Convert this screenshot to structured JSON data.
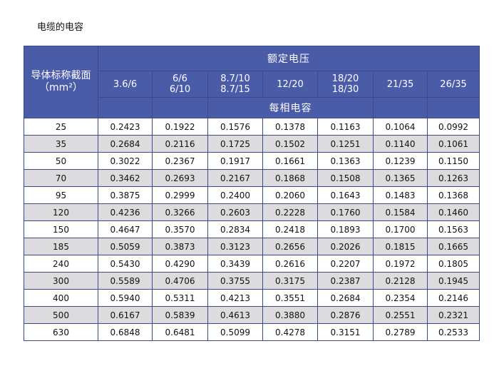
{
  "title": "电缆的电容",
  "header": {
    "corner_line1": "导体标称截面",
    "corner_line2": "（mm²）",
    "rated_voltage": "额定电压",
    "capacitance": "每相电容",
    "voltages": [
      {
        "line1": "3.6/6",
        "line2": ""
      },
      {
        "line1": "6/6",
        "line2": "6/10"
      },
      {
        "line1": "8.7/10",
        "line2": "8.7/15"
      },
      {
        "line1": "12/20",
        "line2": ""
      },
      {
        "line1": "18/20",
        "line2": "18/30"
      },
      {
        "line1": "21/35",
        "line2": ""
      },
      {
        "line1": "26/35",
        "line2": ""
      }
    ]
  },
  "rows": [
    {
      "size": "25",
      "values": [
        "0.2423",
        "0.1922",
        "0.1576",
        "0.1378",
        "0.1163",
        "0.1064",
        "0.0992"
      ]
    },
    {
      "size": "35",
      "values": [
        "0.2684",
        "0.2116",
        "0.1725",
        "0.1502",
        "0.1251",
        "0.1140",
        "0.1061"
      ]
    },
    {
      "size": "50",
      "values": [
        "0.3022",
        "0.2367",
        "0.1917",
        "0.1661",
        "0.1363",
        "0.1239",
        "0.1150"
      ]
    },
    {
      "size": "70",
      "values": [
        "0.3462",
        "0.2693",
        "0.2167",
        "0.1868",
        "0.1508",
        "0.1365",
        "0.1263"
      ]
    },
    {
      "size": "95",
      "values": [
        "0.3875",
        "0.2999",
        "0.2400",
        "0.2060",
        "0.1643",
        "0.1483",
        "0.1368"
      ]
    },
    {
      "size": "120",
      "values": [
        "0.4236",
        "0.3266",
        "0.2603",
        "0.2228",
        "0.1760",
        "0.1584",
        "0.1460"
      ]
    },
    {
      "size": "150",
      "values": [
        "0.4647",
        "0.3570",
        "0.2834",
        "0.2418",
        "0.1893",
        "0.1700",
        "0.1563"
      ]
    },
    {
      "size": "185",
      "values": [
        "0.5059",
        "0.3873",
        "0.3123",
        "0.2656",
        "0.2026",
        "0.1815",
        "0.1665"
      ]
    },
    {
      "size": "240",
      "values": [
        "0.5430",
        "0.4290",
        "0.3439",
        "0.2616",
        "0.2207",
        "0.1972",
        "0.1805"
      ]
    },
    {
      "size": "300",
      "values": [
        "0.5589",
        "0.4706",
        "0.3755",
        "0.3175",
        "0.2387",
        "0.2128",
        "0.1945"
      ]
    },
    {
      "size": "400",
      "values": [
        "0.5940",
        "0.5311",
        "0.4213",
        "0.3551",
        "0.2684",
        "0.2354",
        "0.2146"
      ]
    },
    {
      "size": "500",
      "values": [
        "0.6167",
        "0.5839",
        "0.4613",
        "0.3880",
        "0.2876",
        "0.2551",
        "0.2321"
      ]
    },
    {
      "size": "630",
      "values": [
        "0.6848",
        "0.6481",
        "0.5099",
        "0.4278",
        "0.3151",
        "0.2789",
        "0.2533"
      ]
    }
  ]
}
